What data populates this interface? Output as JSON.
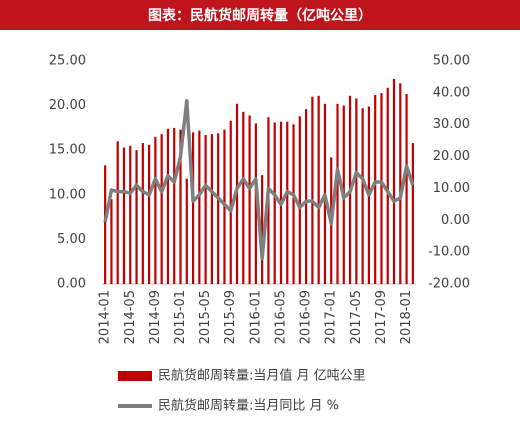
{
  "chart_data": {
    "type": "bar_line",
    "title": "图表：民航货邮周转量（亿吨公里）",
    "categories": [
      "2014-01",
      null,
      null,
      null,
      "2014-05",
      null,
      null,
      null,
      "2014-09",
      null,
      null,
      null,
      "2015-01",
      null,
      null,
      null,
      "2015-05",
      null,
      null,
      null,
      "2015-09",
      null,
      null,
      null,
      "2016-01",
      null,
      null,
      null,
      "2016-05",
      null,
      null,
      null,
      "2016-09",
      null,
      null,
      null,
      "2017-01",
      null,
      null,
      null,
      "2017-05",
      null,
      null,
      null,
      "2017-09",
      null,
      null,
      null,
      "2018-01",
      null
    ],
    "series": [
      {
        "name": "民航货邮周转量:当月值 月 亿吨公里",
        "color": "#c00000",
        "type": "bar",
        "axis": "y",
        "values": [
          13.3,
          9.5,
          16.0,
          15.3,
          15.5,
          15.0,
          15.8,
          15.6,
          16.5,
          16.8,
          17.4,
          17.5,
          17.3,
          11.8,
          17.0,
          17.2,
          16.7,
          16.8,
          16.9,
          17.3,
          18.3,
          20.2,
          19.3,
          18.9,
          18.0,
          12.2,
          18.7,
          18.1,
          18.2,
          18.2,
          17.9,
          18.8,
          19.6,
          21.0,
          21.1,
          20.2,
          14.2,
          20.2,
          20.0,
          21.1,
          20.8,
          19.7,
          19.9,
          21.2,
          21.4,
          22.0,
          23.0,
          22.5,
          21.3,
          15.8
        ]
      },
      {
        "name": "民航货邮周转量:当月同比 月 %",
        "color": "#7f7f7f",
        "type": "line",
        "axis": "y2",
        "values": [
          -0.5,
          9.5,
          9.0,
          9.0,
          8.5,
          11,
          9,
          8,
          13,
          9,
          14,
          12,
          20,
          37.5,
          6,
          8,
          11,
          9,
          7,
          5,
          3,
          10,
          13,
          10,
          13,
          -12,
          10,
          8,
          5,
          9,
          8,
          4,
          6,
          6,
          4,
          8,
          -1,
          16,
          7,
          9,
          15,
          13,
          8,
          12,
          12,
          9,
          6,
          7,
          17,
          11
        ]
      }
    ],
    "ylim": [
      0,
      25
    ],
    "yticks": [
      {
        "value": 0,
        "label": "0.00"
      },
      {
        "value": 5,
        "label": "5.00"
      },
      {
        "value": 10,
        "label": "10.00"
      },
      {
        "value": 15,
        "label": "15.00"
      },
      {
        "value": 20,
        "label": "20.00"
      },
      {
        "value": 25,
        "label": "25.00"
      }
    ],
    "y2lim": [
      -20,
      50
    ],
    "y2ticks": [
      {
        "value": -20,
        "label": "-20.00"
      },
      {
        "value": -10,
        "label": "-10.00"
      },
      {
        "value": 0,
        "label": "0.00"
      },
      {
        "value": 10,
        "label": "10.00"
      },
      {
        "value": 20,
        "label": "20.00"
      },
      {
        "value": 30,
        "label": "30.00"
      },
      {
        "value": 40,
        "label": "40.00"
      },
      {
        "value": 50,
        "label": "50.00"
      }
    ]
  }
}
